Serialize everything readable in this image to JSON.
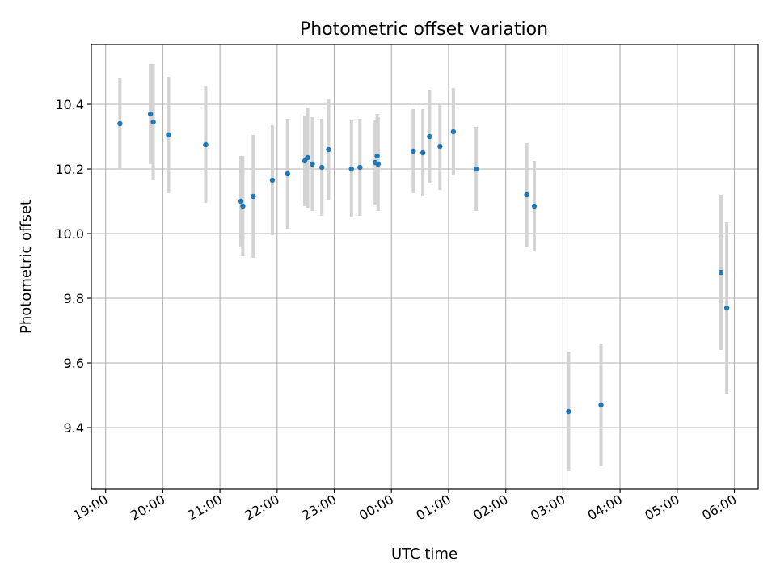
{
  "chart_data": {
    "type": "scatter",
    "title": "Photometric offset variation",
    "xlabel": "UTC time",
    "ylabel": "Photometric offset",
    "x_tick_labels": [
      "19:00",
      "20:00",
      "21:00",
      "22:00",
      "23:00",
      "00:00",
      "01:00",
      "02:00",
      "03:00",
      "04:00",
      "05:00",
      "06:00"
    ],
    "y_ticks": [
      9.4,
      9.6,
      9.8,
      10.0,
      10.2,
      10.4
    ],
    "y_tick_labels": [
      "9.4",
      "9.6",
      "9.8",
      "10.0",
      "10.2",
      "10.4"
    ],
    "xlim": [
      "18:45",
      "06:25"
    ],
    "ylim": [
      9.21,
      10.585
    ],
    "grid": true,
    "point_color": "#1f77b4",
    "errorbar_color": "#d3d3d3",
    "series": [
      {
        "points": [
          {
            "x": "19:15",
            "y": 10.34,
            "err": 0.14
          },
          {
            "x": "19:47",
            "y": 10.37,
            "err": 0.155
          },
          {
            "x": "19:50",
            "y": 10.345,
            "err": 0.18
          },
          {
            "x": "20:06",
            "y": 10.305,
            "err": 0.18
          },
          {
            "x": "20:45",
            "y": 10.275,
            "err": 0.18
          },
          {
            "x": "21:22",
            "y": 10.1,
            "err": 0.14
          },
          {
            "x": "21:24",
            "y": 10.085,
            "err": 0.155
          },
          {
            "x": "21:35",
            "y": 10.115,
            "err": 0.19
          },
          {
            "x": "21:55",
            "y": 10.165,
            "err": 0.17
          },
          {
            "x": "22:11",
            "y": 10.185,
            "err": 0.17
          },
          {
            "x": "22:29",
            "y": 10.225,
            "err": 0.14
          },
          {
            "x": "22:32",
            "y": 10.235,
            "err": 0.155
          },
          {
            "x": "22:37",
            "y": 10.215,
            "err": 0.145
          },
          {
            "x": "22:47",
            "y": 10.205,
            "err": 0.15
          },
          {
            "x": "22:54",
            "y": 10.26,
            "err": 0.155
          },
          {
            "x": "23:18",
            "y": 10.2,
            "err": 0.15
          },
          {
            "x": "23:27",
            "y": 10.205,
            "err": 0.15
          },
          {
            "x": "23:43",
            "y": 10.22,
            "err": 0.13
          },
          {
            "x": "23:45",
            "y": 10.24,
            "err": 0.13
          },
          {
            "x": "23:46",
            "y": 10.215,
            "err": 0.145
          },
          {
            "x": "00:23",
            "y": 10.255,
            "err": 0.13
          },
          {
            "x": "00:33",
            "y": 10.25,
            "err": 0.135
          },
          {
            "x": "00:40",
            "y": 10.3,
            "err": 0.145
          },
          {
            "x": "00:51",
            "y": 10.27,
            "err": 0.135
          },
          {
            "x": "01:05",
            "y": 10.315,
            "err": 0.135
          },
          {
            "x": "01:29",
            "y": 10.2,
            "err": 0.13
          },
          {
            "x": "02:22",
            "y": 10.12,
            "err": 0.16
          },
          {
            "x": "02:30",
            "y": 10.085,
            "err": 0.14
          },
          {
            "x": "03:06",
            "y": 9.45,
            "err": 0.185
          },
          {
            "x": "03:40",
            "y": 9.47,
            "err": 0.19
          },
          {
            "x": "05:46",
            "y": 9.88,
            "err": 0.24
          },
          {
            "x": "05:52",
            "y": 9.77,
            "err": 0.265
          }
        ]
      }
    ]
  }
}
